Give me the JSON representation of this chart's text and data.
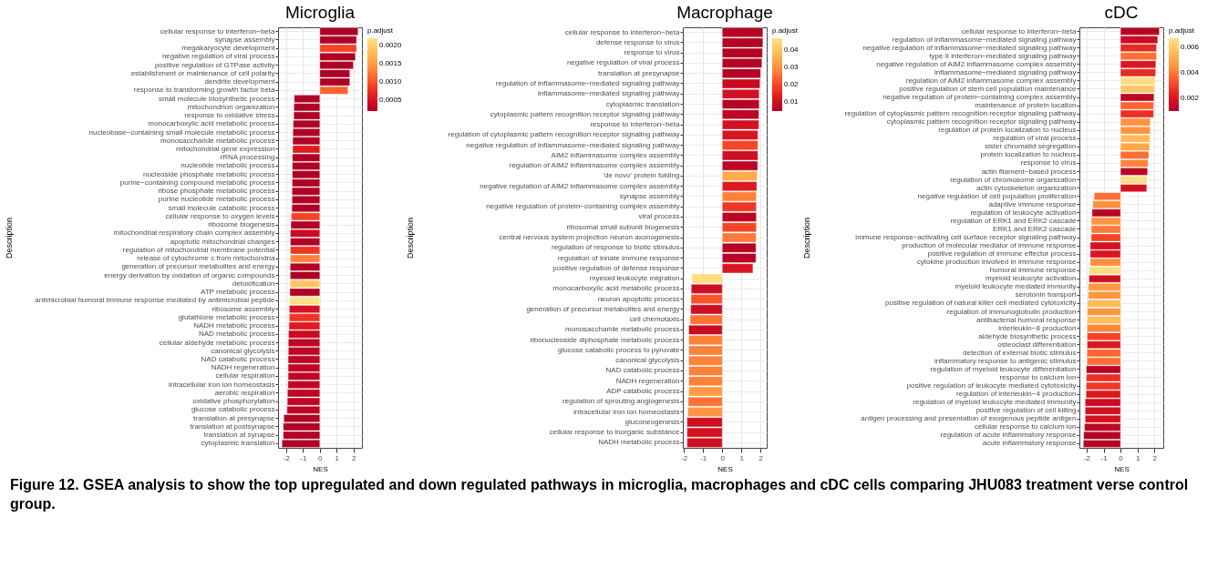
{
  "chart_data": [
    {
      "type": "bar",
      "orientation": "horizontal",
      "title": "Microglia",
      "xlabel": "NES",
      "ylabel": "Description",
      "clabel": "p.adjust",
      "grid": true,
      "categories": [
        "cellular response to interferon−beta",
        "synapse assembly",
        "megakaryocyte development",
        "negative regulation of viral process",
        "positive regulation of GTPase activity",
        "establishment or maintenance of cell polarity",
        "dendrite development",
        "response to transforming growth factor beta",
        "small molecule biosynthetic process",
        "mitochondrion organization",
        "response to oxidative stress",
        "monocarboxylic acid metabolic process",
        "nucleobase−containing small molecule metabolic process",
        "monosaccharide metabolic process",
        "mitochondrial gene expression",
        "rRNA processing",
        "nucleotide metabolic process",
        "nucleoside phosphate metabolic process",
        "purine−containing compound metabolic process",
        "ribose phosphate metabolic process",
        "purine nucleotide metabolic process",
        "small molecule catabolic process",
        "cellular response to oxygen levels",
        "ribosome biogenesis",
        "mitochondrial respiratory chain complex assembly",
        "apoptotic mitochondrial changes",
        "regulation of mitochondrial membrane potential",
        "release of cytochrome c from mitochondria",
        "generation of precursor metabolites and energy",
        "energy derivation by oxidation of organic compounds",
        "detoxification",
        "ATP metabolic process",
        "antimicrobial humoral immune response mediated by antimicrobial peptide",
        "ribosome assembly",
        "glutathione metabolic process",
        "NADH metabolic process",
        "NAD metabolic process",
        "cellular aldehyde metabolic process",
        "canonical glycolysis",
        "NAD catabolic process",
        "NADH regeneration",
        "cellular respiration",
        "intracellular iron ion homeostasis",
        "aerobic respiration",
        "oxidative phosphorylation",
        "glucose catabolic process",
        "translation at presynapse",
        "translation at postsynapse",
        "translation at synapse",
        "cytoplasmic translation"
      ],
      "values": [
        2.27,
        2.18,
        2.18,
        2.11,
        1.99,
        1.78,
        1.78,
        1.67,
        -1.52,
        -1.54,
        -1.55,
        -1.58,
        -1.6,
        -1.61,
        -1.61,
        -1.63,
        -1.63,
        -1.63,
        -1.64,
        -1.65,
        -1.65,
        -1.66,
        -1.69,
        -1.72,
        -1.75,
        -1.75,
        -1.75,
        -1.75,
        -1.76,
        -1.76,
        -1.77,
        -1.78,
        -1.8,
        -1.81,
        -1.81,
        -1.83,
        -1.86,
        -1.87,
        -1.87,
        -1.88,
        -1.88,
        -1.88,
        -1.89,
        -1.92,
        -1.93,
        -1.95,
        -2.14,
        -2.17,
        -2.17,
        -2.25
      ],
      "cvalues": [
        0.0002,
        0.0002,
        0.0009,
        0.0002,
        0.0002,
        0.0002,
        0.0002,
        0.0011,
        0.0002,
        0.0002,
        0.0002,
        0.0002,
        0.0002,
        0.0002,
        0.0006,
        0.0002,
        0.0002,
        0.0002,
        0.0002,
        0.0002,
        0.0002,
        0.0002,
        0.0009,
        0.0002,
        0.0004,
        0.0002,
        0.0008,
        0.0013,
        0.0002,
        0.0002,
        0.0019,
        0.0002,
        0.0022,
        0.0005,
        0.0008,
        0.0006,
        0.0004,
        0.0003,
        0.0003,
        0.0003,
        0.0003,
        0.0003,
        0.0003,
        0.0003,
        0.0003,
        0.0003,
        0.0002,
        0.0002,
        0.0002,
        0.0002
      ],
      "clim": [
        0.0002,
        0.0022
      ],
      "cticks": [
        0.0005,
        {
          "value": 0.001,
          "label": "0.0010"
        },
        0.0015,
        {
          "value": 0.002,
          "label": "0.0020"
        }
      ],
      "xlim": [
        -2.48,
        2.5
      ],
      "xticks": [
        -2,
        -1,
        0,
        1,
        2
      ],
      "annotations": [
        "Figure 12. GSEA analysis to show the top upregulated and down regulated pathways in microglia, macrophages and cDC cells comparing JHU083 treatment verse control group."
      ]
    },
    {
      "type": "bar",
      "orientation": "horizontal",
      "title": "Macrophage",
      "xlabel": "NES",
      "ylabel": "Description",
      "clabel": "p.adjust",
      "grid": true,
      "categories": [
        "cellular response to interferon−beta",
        "defense response to virus",
        "response to virus",
        "negative regulation of viral process",
        "translation at presynapse",
        "regulation of inflammasome−mediated signaling pathway",
        "inflammasome−mediated signaling pathway",
        "cytoplasmic translation",
        "cytoplasmic pattern recognition receptor signaling pathway",
        "response to interferon−beta",
        "regulation of cytoplasmic pattern recognition receptor signaling pathway",
        "negative regulation of inflammasome−mediated signaling pathway",
        "AIM2 inflammasome complex assembly",
        "regulation of AIM2 inflammasome complex assembly",
        "'de novo' protein folding",
        "negative regulation of AIM2 inflammasome complex assembly",
        "synapse assembly",
        "negative regulation of protein−containing complex assembly",
        "viral process",
        "ribosomal small subunit biogenesis",
        "central nervous system projection neuron axonogenesis",
        "regulation of response to biotic stimulus",
        "regulation of innate immune response",
        "positive regulation of defense response",
        "myeloid leukocyte migration",
        "monocarboxylic acid metabolic process",
        "neuron apoptotic process",
        "generation of precursor metabolites and energy",
        "cell chemotaxis",
        "monosaccharide metabolic process",
        "ribonucleoside diphosphate metabolic process",
        "glucose catabolic process to pyruvate",
        "canonical glycolysis",
        "NAD catabolic process",
        "NADH regeneration",
        "ADP catabolic process",
        "regulation of sprouting angiogenesis",
        "intracellular iron ion homeostasis",
        "gluconeogenesis",
        "cellular response to inorganic substance",
        "NADH metabolic process"
      ],
      "values": [
        2.12,
        2.12,
        2.1,
        2.07,
        2.0,
        1.97,
        1.93,
        1.93,
        1.91,
        1.91,
        1.86,
        1.86,
        1.86,
        1.85,
        1.82,
        1.8,
        1.78,
        1.78,
        1.78,
        1.78,
        1.77,
        1.76,
        1.76,
        1.6,
        -1.58,
        -1.62,
        -1.63,
        -1.65,
        -1.68,
        -1.75,
        -1.75,
        -1.75,
        -1.75,
        -1.75,
        -1.75,
        -1.75,
        -1.78,
        -1.8,
        -1.84,
        -1.84,
        -1.84
      ],
      "cvalues": [
        0.006,
        0.006,
        0.006,
        0.006,
        0.006,
        0.009,
        0.011,
        0.006,
        0.007,
        0.011,
        0.012,
        0.02,
        0.01,
        0.007,
        0.035,
        0.013,
        0.028,
        0.018,
        0.007,
        0.02,
        0.027,
        0.006,
        0.006,
        0.012,
        0.046,
        0.01,
        0.022,
        0.01,
        0.026,
        0.009,
        0.028,
        0.028,
        0.028,
        0.028,
        0.028,
        0.032,
        0.026,
        0.031,
        0.01,
        0.011,
        0.01
      ],
      "clim": [
        0.005,
        0.047
      ],
      "cticks": [
        0.01,
        0.02,
        0.03,
        0.04
      ],
      "xlim": [
        -2.06,
        2.32
      ],
      "xticks": [
        -2,
        -1,
        0,
        1,
        2
      ]
    },
    {
      "type": "bar",
      "orientation": "horizontal",
      "title": "cDC",
      "xlabel": "NES",
      "ylabel": "Description",
      "clabel": "p.adjust",
      "grid": true,
      "categories": [
        "cellular response to interferon−beta",
        "regulation of inflammasome−mediated signaling pathway",
        "negative regulation of inflammasome−mediated signaling pathway",
        "type II interferon−mediated signaling pathway",
        "negative regulation of AIM2 inflammasome complex assembly",
        "inflammasome−mediated signaling pathway",
        "regulation of AIM2 inflammasome complex assembly",
        "positive regulation of stem cell population maintenance",
        "negative regulation of protein−containing complex assembly",
        "maintenance of protein location",
        "regulation of cytoplasmic pattern recognition receptor signaling pathway",
        "cytoplasmic pattern recognition receptor signaling pathway",
        "regulation of protein localization to nucleus",
        "regulation of viral process",
        "sister chromatid segregation",
        "protein localization to nucleus",
        "response to virus",
        "actin filament−based process",
        "regulation of chromosome organization",
        "actin cytoskeleton organization",
        "negative regulation of cell population proliferation",
        "adaptive immune response",
        "regulation of leukocyte activation",
        "regulation of ERK1 and ERK2 cascade",
        "ERK1 and ERK2 cascade",
        "immune response−activating cell surface receptor signaling pathway",
        "production of molecular mediator of immune response",
        "positive regulation of immune effector process",
        "cytokine production involved in immune response",
        "humoral immune response",
        "myeloid leukocyte activation",
        "myeloid leukocyte mediated immunity",
        "serotonin transport",
        "positive regulation of natural killer cell mediated cytotoxicity",
        "regulation of immunoglobulin production",
        "antibacterial humoral response",
        "interleukin−8 production",
        "aldehyde biosynthetic process",
        "osteoclast differentiation",
        "detection of external biotic stimulus",
        "inflammatory response to antigenic stimulus",
        "regulation of myeloid leukocyte differentiation",
        "response to calcium ion",
        "positive regulation of leukocyte mediated cytotoxicity",
        "regulation of interleukin−4 production",
        "regulation of myeloid leukocyte mediated immunity",
        "positive regulation of cell killing",
        "antigen processing and presentation of exogenous peptide antigen",
        "cellular response to calcium ion",
        "regulation of acute inflammatory response",
        "acute inflammatory response"
      ],
      "values": [
        2.3,
        2.2,
        2.13,
        2.13,
        2.09,
        2.08,
        2.04,
        2.01,
        1.98,
        1.96,
        1.96,
        1.76,
        1.76,
        1.74,
        1.72,
        1.67,
        1.63,
        1.6,
        1.57,
        1.55,
        -1.56,
        -1.64,
        -1.68,
        -1.73,
        -1.73,
        -1.73,
        -1.79,
        -1.79,
        -1.79,
        -1.86,
        -1.86,
        -1.9,
        -1.91,
        -1.94,
        -1.96,
        -1.96,
        -1.97,
        -1.97,
        -1.97,
        -1.98,
        -1.98,
        -2.02,
        -2.02,
        -2.03,
        -2.04,
        -2.09,
        -2.09,
        -2.09,
        -2.13,
        -2.18,
        -2.2
      ],
      "cvalues": [
        0.0012,
        0.0016,
        0.0025,
        0.0038,
        0.002,
        0.0025,
        0.0065,
        0.0058,
        0.0013,
        0.0036,
        0.0026,
        0.0045,
        0.0045,
        0.0055,
        0.005,
        0.0038,
        0.0042,
        0.0012,
        0.0066,
        0.0018,
        0.0038,
        0.0044,
        0.0012,
        0.0046,
        0.004,
        0.003,
        0.0018,
        0.002,
        0.0044,
        0.0065,
        0.0017,
        0.0046,
        0.0046,
        0.0055,
        0.0046,
        0.0056,
        0.0042,
        0.003,
        0.002,
        0.0036,
        0.0038,
        0.0012,
        0.0026,
        0.0028,
        0.002,
        0.0016,
        0.0017,
        0.0018,
        0.0013,
        0.0011,
        0.0012
      ],
      "clim": [
        0.001,
        0.0067
      ],
      "cticks": [
        0.002,
        0.004,
        0.006
      ],
      "xlim": [
        -2.43,
        2.53
      ],
      "xticks": [
        -2,
        -1,
        0,
        1,
        2
      ]
    }
  ]
}
